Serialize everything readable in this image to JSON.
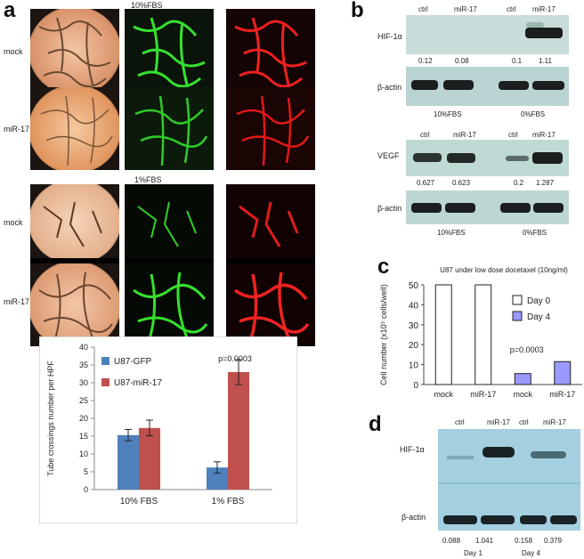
{
  "panel_a": {
    "label": "a",
    "group1_title": "10%FBS",
    "group2_title": "1%FBS",
    "row_mock": "mock",
    "row_mir": "miR-17"
  },
  "panel_b": {
    "label": "b",
    "col_ctrl": "ctrl",
    "col_mir": "miR-17",
    "hif_label": "HIF-1α",
    "actin_label": "β-actin",
    "vegf_label": "VEGF",
    "hif_values": [
      "0.12",
      "0.08",
      "0.1",
      "1.11"
    ],
    "vegf_values": [
      "0.627",
      "0.623",
      "0.2",
      "1.287"
    ],
    "cond1": "10%FBS",
    "cond2": "0%FBS"
  },
  "panel_c": {
    "label": "c"
  },
  "panel_d": {
    "label": "d",
    "col_ctrl": "ctrl",
    "col_mir": "miR-17",
    "hif_label": "HIF-1α",
    "actin_label": "β-actin",
    "values": [
      "0.088",
      "1.041",
      "0.158",
      "0.379"
    ],
    "day1": "Day 1",
    "day4": "Day 4"
  },
  "chart_data": [
    {
      "type": "bar",
      "title": "",
      "categories": [
        "10% FBS",
        "1% FBS"
      ],
      "series": [
        {
          "name": "U87-GFP",
          "color": "#4f81bd",
          "values": [
            15.3,
            6.2
          ],
          "errors": [
            1.6,
            1.6
          ]
        },
        {
          "name": "U87-miR-17",
          "color": "#c0504d",
          "values": [
            17.3,
            33.0
          ],
          "errors": [
            2.2,
            3.5
          ]
        }
      ],
      "ylabel": "Tube crossings number per HPF",
      "xlabel": "",
      "ylim": [
        0,
        40
      ],
      "yticks": [
        0,
        5,
        10,
        15,
        20,
        25,
        30,
        35,
        40
      ],
      "annotation": "p=0.0003",
      "legend": "top-left"
    },
    {
      "type": "bar",
      "title": "U87 under low dose docetaxel (10ng/ml)",
      "categories": [
        "mock",
        "miR-17",
        "mock",
        "miR-17"
      ],
      "series": [
        {
          "name": "Day 0",
          "color": "#ffffff",
          "values": [
            50,
            50,
            null,
            null
          ]
        },
        {
          "name": "Day 4",
          "color": "#9999ff",
          "values": [
            null,
            null,
            5.5,
            11.5
          ]
        }
      ],
      "ylabel": "Cell number (x10⁵ cells/well)",
      "xlabel": "",
      "ylim": [
        0,
        50
      ],
      "yticks": [
        0,
        10,
        20,
        30,
        40,
        50
      ],
      "annotation": "p=0.0003",
      "legend": "right"
    }
  ]
}
